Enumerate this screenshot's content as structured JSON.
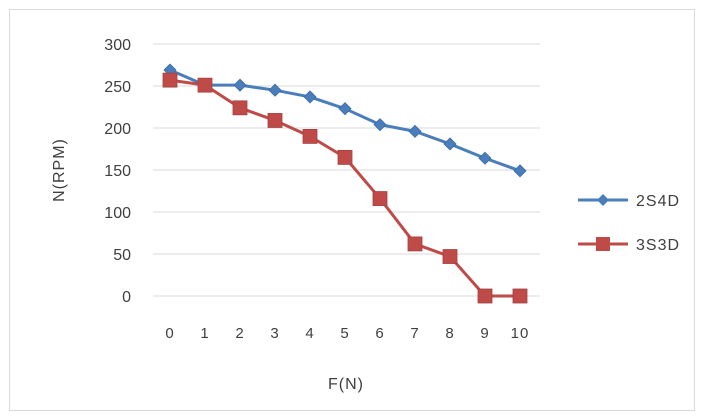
{
  "chart_data": {
    "type": "line",
    "title": "",
    "xlabel": "F(N)",
    "ylabel": "N(RPM)",
    "x": [
      0,
      1,
      2,
      3,
      4,
      5,
      6,
      7,
      8,
      9,
      10
    ],
    "x_tick_labels": [
      "0",
      "1",
      "2",
      "3",
      "4",
      "5",
      "6",
      "7",
      "8",
      "9",
      "10"
    ],
    "ylim": [
      0,
      300
    ],
    "y_ticks": [
      0,
      50,
      100,
      150,
      200,
      250,
      300
    ],
    "y_tick_labels": [
      "0",
      "50",
      "100",
      "150",
      "200",
      "250",
      "300"
    ],
    "grid": "horizontal",
    "legend_position": "right",
    "series": [
      {
        "name": "2S4D",
        "color": "#4a7ebb",
        "marker": "diamond",
        "values": [
          269,
          251,
          251,
          245,
          237,
          223,
          204,
          196,
          181,
          164,
          149
        ]
      },
      {
        "name": "3S3D",
        "color": "#be4b48",
        "marker": "square",
        "values": [
          257,
          251,
          224,
          209,
          190,
          165,
          116,
          62,
          47,
          0,
          0
        ]
      }
    ]
  }
}
